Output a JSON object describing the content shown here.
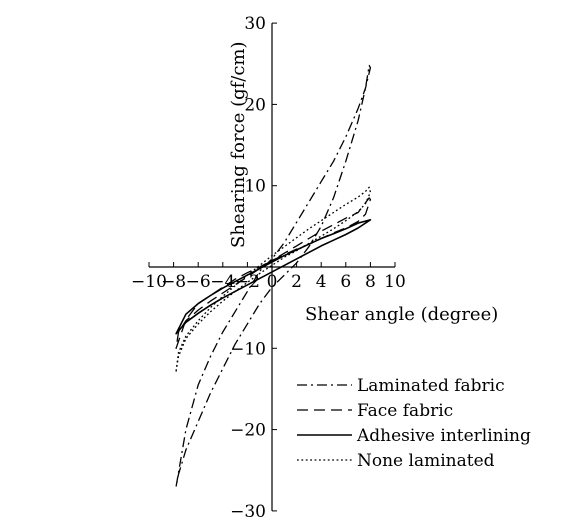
{
  "chart_data": {
    "type": "line",
    "xlabel": "Shear angle (degree)",
    "ylabel": "Shearing force (gf/cm)",
    "xlim": [
      -10,
      10
    ],
    "ylim": [
      -30,
      30
    ],
    "xticks": [
      -10,
      -8,
      -6,
      -4,
      -2,
      0,
      2,
      4,
      6,
      8,
      10
    ],
    "yticks": [
      -30,
      -20,
      -10,
      10,
      20,
      30
    ],
    "grid": false,
    "legend_position": "bottom-right",
    "series": [
      {
        "name": "Laminated fabric",
        "dash": "dashdot",
        "x": [
          -7.8,
          -7.0,
          -6.0,
          -5.0,
          -4.0,
          -3.0,
          -2.0,
          -1.0,
          0.0,
          1.0,
          2.0,
          3.0,
          4.0,
          5.0,
          6.0,
          7.0,
          7.6,
          8.0,
          7.9,
          7.6,
          7.0,
          6.0,
          5.0,
          4.0,
          3.0,
          2.0,
          1.0,
          0.0,
          -1.0,
          -2.0,
          -3.0,
          -4.0,
          -5.0,
          -6.0,
          -7.0,
          -7.6,
          -7.8
        ],
        "y": [
          -27.0,
          -20.0,
          -14.5,
          -11.0,
          -8.0,
          -5.5,
          -3.0,
          -0.5,
          1.0,
          3.0,
          5.5,
          8.0,
          10.5,
          13.0,
          16.0,
          19.5,
          22.0,
          24.5,
          24.8,
          22.0,
          18.0,
          13.0,
          8.5,
          5.0,
          2.5,
          0.5,
          -1.0,
          -2.5,
          -4.5,
          -7.0,
          -9.5,
          -12.5,
          -15.5,
          -19.0,
          -22.5,
          -25.5,
          -27.0
        ]
      },
      {
        "name": "Face fabric",
        "dash": "dashed",
        "x": [
          -7.8,
          -7.0,
          -6.0,
          -5.0,
          -4.0,
          -3.0,
          -2.0,
          -1.0,
          0.0,
          1.0,
          2.0,
          3.0,
          4.0,
          5.0,
          6.0,
          7.0,
          7.6,
          8.0,
          7.9,
          7.0,
          6.0,
          5.0,
          4.0,
          3.0,
          2.0,
          1.0,
          0.0,
          -1.0,
          -2.0,
          -3.0,
          -4.0,
          -5.0,
          -6.0,
          -7.0,
          -7.6,
          -7.8
        ],
        "y": [
          -10.0,
          -6.5,
          -4.5,
          -3.5,
          -2.5,
          -1.5,
          -0.7,
          0.0,
          0.8,
          1.5,
          2.2,
          2.8,
          3.5,
          4.2,
          4.8,
          5.6,
          6.5,
          8.3,
          8.5,
          6.7,
          6.0,
          5.2,
          4.4,
          3.5,
          2.6,
          1.7,
          0.8,
          -0.2,
          -1.2,
          -2.2,
          -3.2,
          -4.2,
          -5.3,
          -6.6,
          -8.0,
          -10.0
        ]
      },
      {
        "name": "Adhesive interlining",
        "dash": "solid",
        "x": [
          -7.8,
          -7.0,
          -6.0,
          -5.0,
          -4.0,
          -3.0,
          -2.0,
          -1.0,
          0.0,
          1.0,
          2.0,
          3.0,
          4.0,
          5.0,
          6.0,
          7.0,
          8.0,
          7.0,
          6.0,
          5.0,
          4.0,
          3.0,
          2.0,
          1.0,
          0.0,
          -1.0,
          -2.0,
          -3.0,
          -4.0,
          -5.0,
          -6.0,
          -7.0,
          -7.8
        ],
        "y": [
          -8.2,
          -6.8,
          -5.7,
          -4.7,
          -3.8,
          -3.0,
          -2.2,
          -1.4,
          -0.6,
          0.2,
          1.0,
          1.8,
          2.6,
          3.3,
          4.0,
          4.8,
          5.8,
          5.4,
          4.7,
          4.1,
          3.5,
          2.8,
          2.1,
          1.4,
          0.6,
          -0.2,
          -1.0,
          -1.8,
          -2.6,
          -3.5,
          -4.5,
          -5.8,
          -8.2
        ]
      },
      {
        "name": "None laminated",
        "dash": "dotted",
        "x": [
          -7.8,
          -7.6,
          -7.0,
          -6.0,
          -5.0,
          -4.0,
          -3.0,
          -2.0,
          -1.0,
          0.0,
          1.0,
          2.0,
          3.0,
          4.0,
          5.0,
          6.0,
          7.0,
          7.6,
          8.0,
          7.9,
          7.6,
          7.0,
          6.0,
          5.0,
          4.0,
          3.0,
          2.0,
          1.0,
          0.0,
          -1.0,
          -2.0,
          -3.0,
          -4.0,
          -5.0,
          -6.0,
          -7.0,
          -7.6,
          -7.8
        ],
        "y": [
          -12.8,
          -11.0,
          -8.8,
          -7.0,
          -5.5,
          -4.2,
          -3.0,
          -1.9,
          -0.8,
          0.2,
          1.2,
          2.0,
          2.9,
          3.8,
          4.7,
          5.7,
          6.8,
          7.8,
          9.2,
          9.8,
          9.3,
          8.6,
          7.7,
          6.7,
          5.7,
          4.7,
          3.6,
          2.5,
          1.4,
          0.2,
          -1.0,
          -2.3,
          -3.6,
          -5.0,
          -6.6,
          -8.5,
          -10.5,
          -12.8
        ]
      }
    ]
  }
}
